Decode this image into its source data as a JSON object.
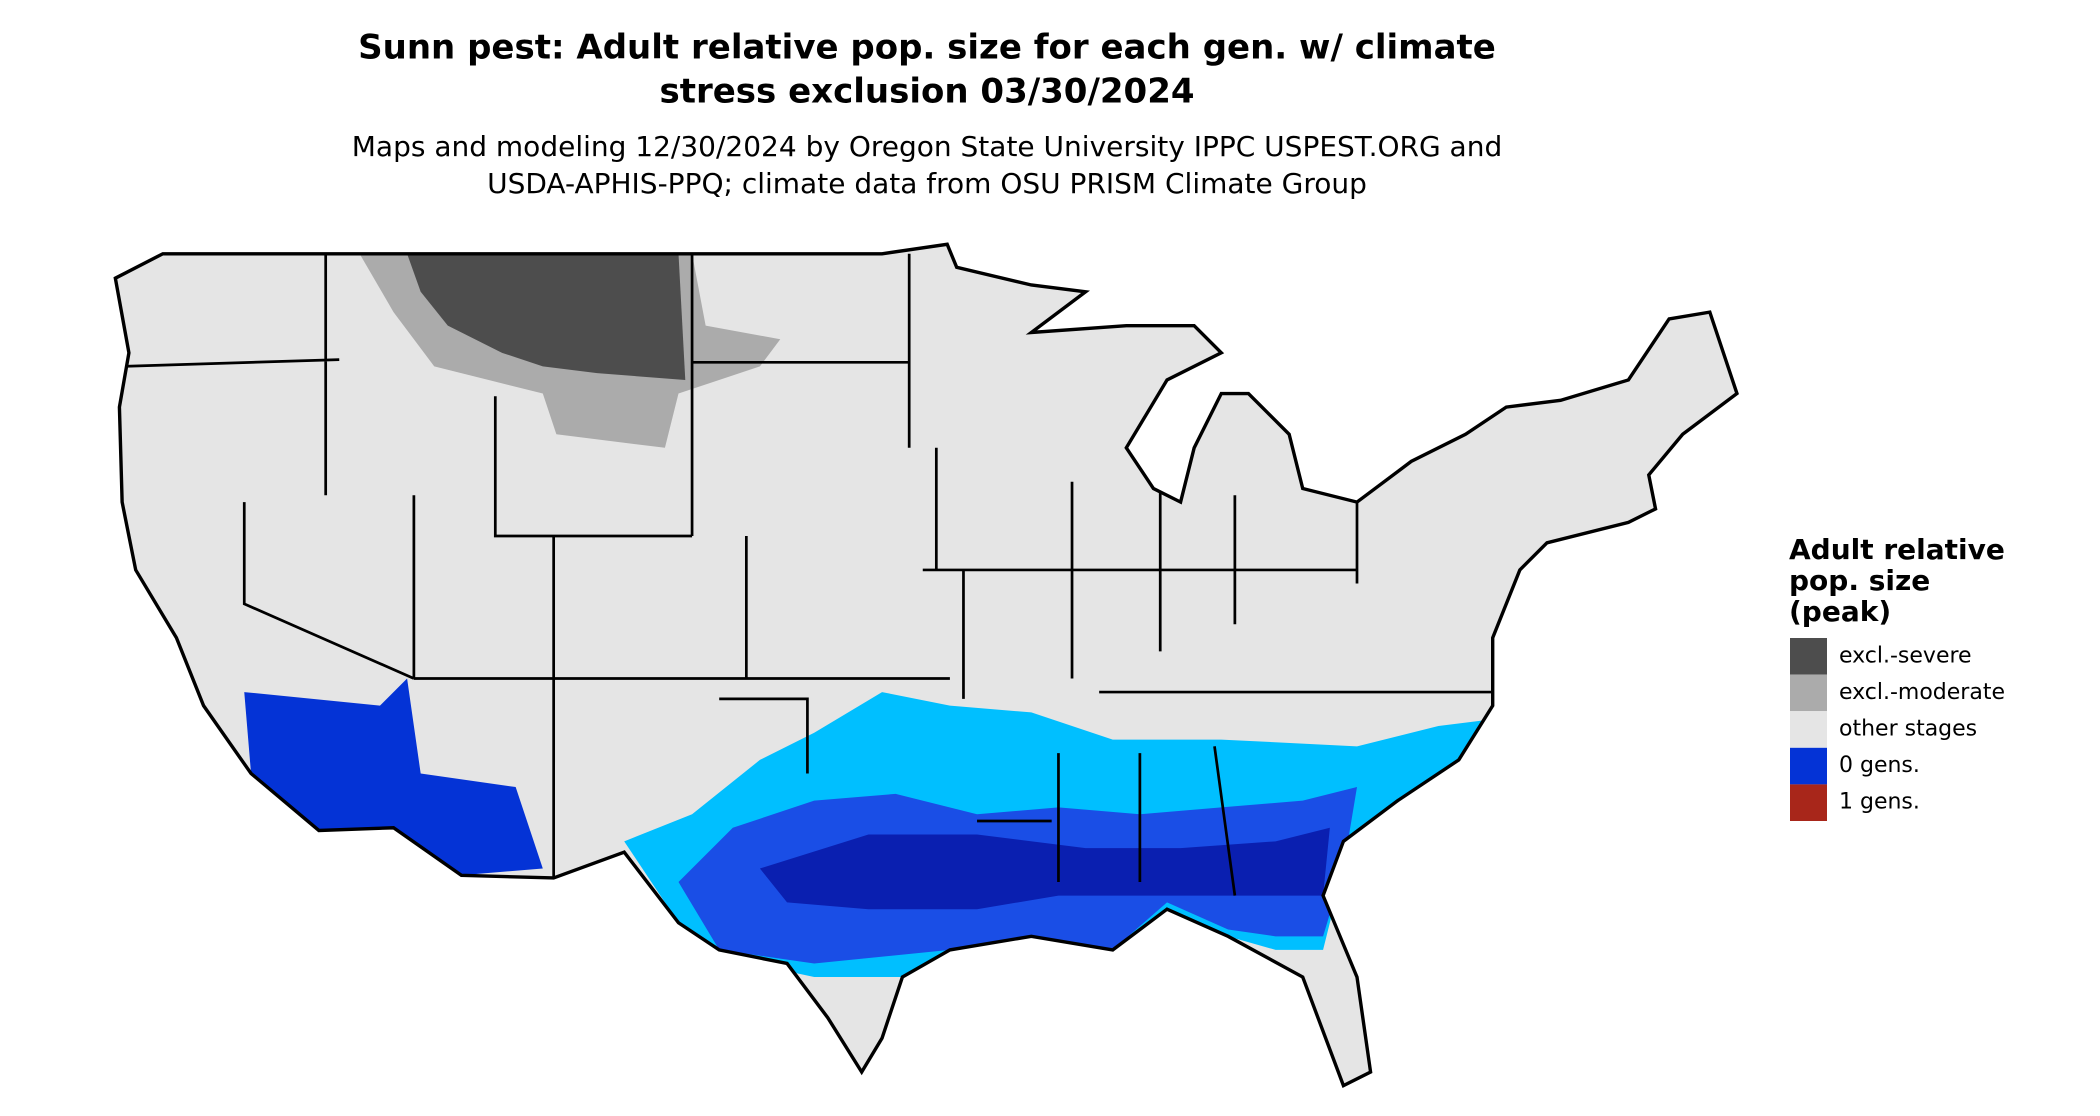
{
  "header": {
    "title": [
      "Sunn pest: Adult relative pop. size for each gen. w/ climate",
      "stress exclusion 03/30/2024"
    ],
    "subtitle": [
      "Maps and modeling 12/30/2024 by Oregon State University IPPC USPEST.ORG and",
      "USDA-APHIS-PPQ; climate data from OSU PRISM Climate Group"
    ]
  },
  "legend": {
    "title": [
      "Adult relative",
      "pop. size",
      "(peak)"
    ],
    "items": [
      {
        "label": "excl.-severe",
        "color": "#4d4d4d"
      },
      {
        "label": "excl.-moderate",
        "color": "#ababab"
      },
      {
        "label": "other stages",
        "color": "#e5e5e5"
      },
      {
        "label": "0 gens.",
        "color": "#0433d6"
      },
      {
        "label": "1 gens.",
        "color": "#a8261a"
      }
    ]
  }
}
